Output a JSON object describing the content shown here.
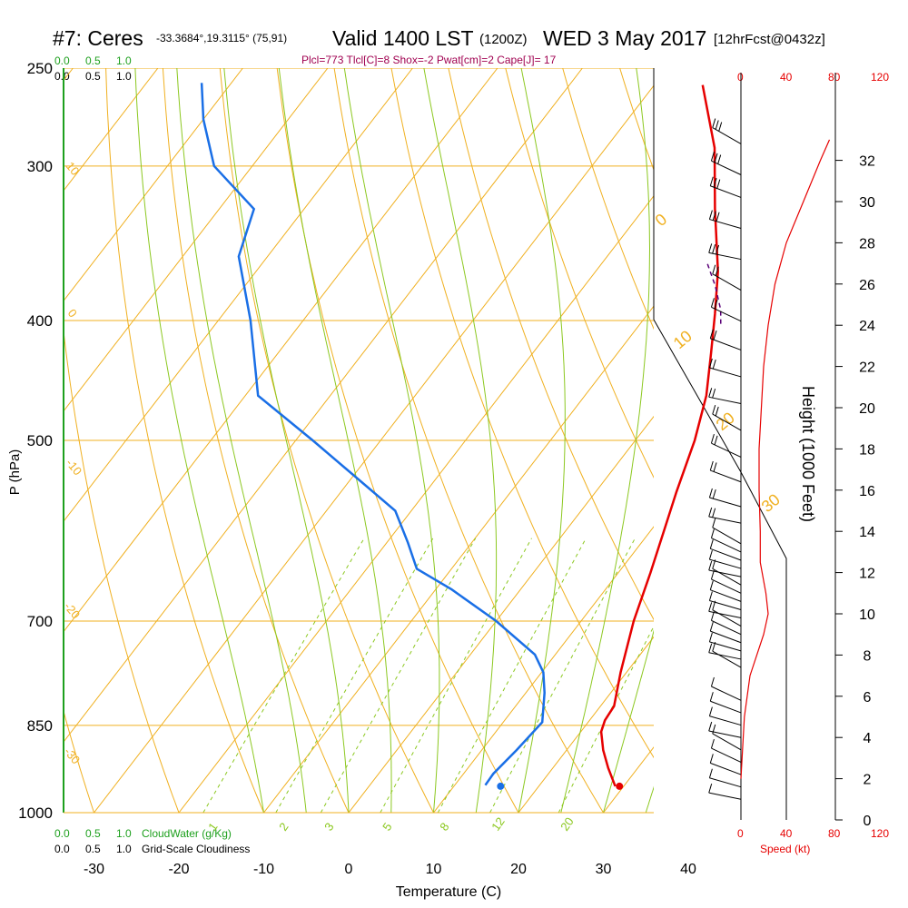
{
  "header": {
    "station": "#7: Ceres",
    "coords": "-33.3684°,19.3115° (75,91)",
    "valid_label": "Valid 1400 LST",
    "utc": "(1200Z)",
    "date": "WED 3 May 2017",
    "forecast": "[12hrFcst@0432z]",
    "indices": "Plcl=773 Tlcl[C]=8 Shox=-2 Pwat[cm]=2 Cape[J]= 17"
  },
  "cloud_scale": {
    "top_green": [
      "0.0",
      "0.5",
      "1.0"
    ],
    "top_black": [
      "0.0",
      "0.5",
      "1.0"
    ],
    "bottom_green": [
      "0.0",
      "0.5",
      "1.0"
    ],
    "bottom_green_label": "CloudWater (g/Kg)",
    "bottom_black": [
      "0.0",
      "0.5",
      "1.0"
    ],
    "bottom_black_label": "Grid-Scale Cloudiness"
  },
  "speed_scale": {
    "top": [
      "0",
      "40",
      "80",
      "120"
    ],
    "bottom": [
      "0",
      "40",
      "80",
      "120"
    ],
    "label": "Speed (kt)"
  },
  "colors": {
    "temperature": "#e60000",
    "dewpoint": "#1a6fe6",
    "isotherm": "#f0b020",
    "dry_adiabat": "#f0b020",
    "moist_adiabat": "#8cc820",
    "mixing_ratio": "#8cc820",
    "cloud_scale_green": "#1ea01e",
    "speed": "#e60000",
    "indices": "#a00050",
    "parcel": "#5a0078"
  },
  "chart_data": {
    "type": "skew-t",
    "ylabel": "P (hPa)",
    "xlabel": "Temperature (C)",
    "y2label": "Height (1000 Feet)",
    "pressure_ticks": [
      250,
      300,
      400,
      500,
      700,
      850,
      1000
    ],
    "temperature_ticks": [
      -30,
      -20,
      -10,
      0,
      10,
      20,
      30,
      40
    ],
    "height_ticks": [
      0,
      2,
      4,
      6,
      8,
      10,
      12,
      14,
      16,
      18,
      20,
      22,
      24,
      26,
      28,
      30,
      32
    ],
    "isotherm_labels": [
      "10",
      "0",
      "-10",
      "-20",
      "-30"
    ],
    "dry_adiabat_labels": [
      "0",
      "10",
      "20",
      "30"
    ],
    "mixing_ratio_labels": [
      "1",
      "2",
      "3",
      "5",
      "8",
      "12",
      "20"
    ],
    "temperature": {
      "name": "Temperature",
      "points": [
        [
          29.0,
          952
        ],
        [
          26.5,
          920
        ],
        [
          24.3,
          890
        ],
        [
          22.4,
          860
        ],
        [
          21.8,
          842
        ],
        [
          21.6,
          820
        ],
        [
          19.3,
          770
        ],
        [
          16.2,
          700
        ],
        [
          13.8,
          640
        ],
        [
          11.5,
          590
        ],
        [
          9.5,
          550
        ],
        [
          7.0,
          500
        ],
        [
          4.3,
          460
        ],
        [
          1.0,
          425
        ],
        [
          -2.1,
          395
        ],
        [
          -5.6,
          365
        ],
        [
          -11.6,
          325
        ],
        [
          -17.2,
          290
        ],
        [
          -24.3,
          258
        ]
      ]
    },
    "dewpoint": {
      "name": "Dewpoint",
      "points": [
        [
          13.6,
          950
        ],
        [
          13.5,
          930
        ],
        [
          14.1,
          890
        ],
        [
          14.6,
          845
        ],
        [
          12.2,
          800
        ],
        [
          10.2,
          770
        ],
        [
          7.6,
          745
        ],
        [
          0.0,
          700
        ],
        [
          -8.1,
          660
        ],
        [
          -14.1,
          635
        ],
        [
          -17.5,
          605
        ],
        [
          -21.9,
          570
        ],
        [
          -38.0,
          500
        ],
        [
          -48.5,
          460
        ],
        [
          -56.2,
          400
        ],
        [
          -63.4,
          355
        ],
        [
          -65.9,
          325
        ],
        [
          -74.5,
          300
        ],
        [
          -80.0,
          275
        ],
        [
          -83.5,
          257
        ]
      ]
    },
    "surface_temperature": [
      29.5,
      952
    ],
    "surface_dewpoint": [
      15.5,
      952
    ],
    "parcel": {
      "points": [
        [
          -7.5,
          360
        ],
        [
          -4.6,
          375
        ],
        [
          -1.8,
          392
        ],
        [
          -0.2,
          405
        ]
      ]
    },
    "wind_speed_kt": {
      "points": [
        [
          0,
          2
        ],
        [
          3,
          5
        ],
        [
          8,
          7
        ],
        [
          20,
          9
        ],
        [
          24,
          10
        ],
        [
          22,
          11
        ],
        [
          17,
          12.5
        ],
        [
          17,
          14
        ],
        [
          16,
          16
        ],
        [
          16,
          18
        ],
        [
          18,
          20
        ],
        [
          20,
          22
        ],
        [
          24,
          24
        ],
        [
          30,
          26
        ],
        [
          40,
          28
        ],
        [
          55,
          30
        ],
        [
          70,
          32
        ],
        [
          78,
          33
        ]
      ]
    },
    "wind_barbs_ft1000": [
      1.0,
      1.6,
      2.2,
      2.8,
      3.4,
      4.0,
      4.6,
      5.2,
      5.8,
      7.4,
      7.8,
      8.2,
      8.6,
      9.0,
      9.4,
      9.8,
      10.2,
      10.6,
      11.0,
      11.4,
      11.8,
      12.2,
      12.6,
      13.0,
      13.4,
      14.4,
      15.2,
      16.4,
      17.6,
      18.9,
      20.2,
      21.5,
      22.8,
      24.2,
      25.7,
      27.2,
      28.7,
      30.2,
      31.3,
      32.8
    ]
  }
}
